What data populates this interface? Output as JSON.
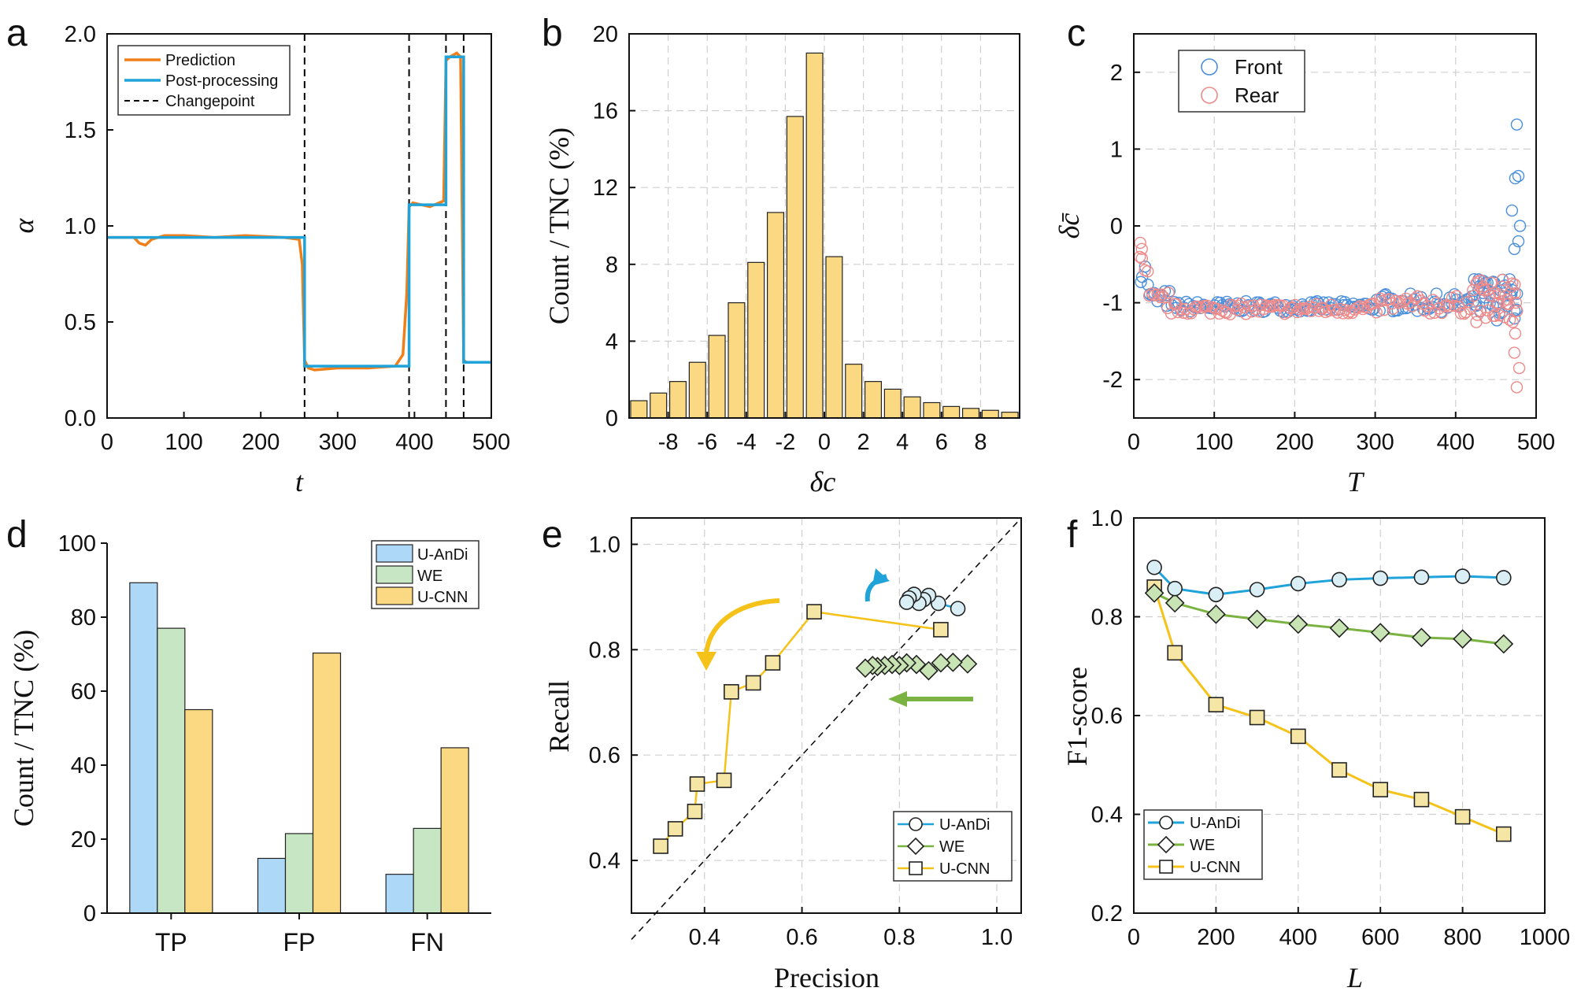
{
  "chart_data": [
    {
      "panel": "a",
      "type": "line",
      "xlabel": "t",
      "ylabel": "α",
      "xlim": [
        0,
        500
      ],
      "ylim": [
        0,
        2
      ],
      "xticks": [
        0,
        100,
        200,
        300,
        400,
        500
      ],
      "yticks": [
        0.0,
        0.5,
        1.0,
        1.5,
        2.0
      ],
      "ytick_labels": [
        "0.0",
        "0.5",
        "1.0",
        "1.5",
        "2.0"
      ],
      "legend": {
        "placement": "top-left",
        "entries": [
          "Prediction",
          "Post-processing",
          "Changepoint"
        ]
      },
      "colors": {
        "prediction": "#F07F1A",
        "post": "#1FA3D9",
        "changepoint": "#000000"
      },
      "changepoints": [
        257,
        393,
        441,
        464
      ],
      "series": [
        {
          "name": "Post-processing",
          "x": [
            0,
            257,
            257,
            393,
            393,
            441,
            441,
            464,
            464,
            500
          ],
          "y": [
            0.94,
            0.94,
            0.27,
            0.27,
            1.11,
            1.11,
            1.88,
            1.88,
            0.29,
            0.29
          ]
        },
        {
          "name": "Prediction",
          "x": [
            0,
            35,
            42,
            50,
            58,
            75,
            100,
            140,
            180,
            230,
            250,
            254,
            257,
            262,
            270,
            300,
            340,
            375,
            385,
            390,
            393,
            398,
            420,
            438,
            441,
            446,
            455,
            460,
            464,
            468,
            480,
            500
          ],
          "y": [
            0.94,
            0.94,
            0.91,
            0.9,
            0.93,
            0.95,
            0.95,
            0.94,
            0.95,
            0.94,
            0.93,
            0.8,
            0.3,
            0.26,
            0.25,
            0.26,
            0.26,
            0.27,
            0.33,
            0.65,
            1.1,
            1.12,
            1.1,
            1.13,
            1.86,
            1.88,
            1.9,
            1.88,
            0.3,
            0.29,
            0.29,
            0.29
          ]
        }
      ]
    },
    {
      "panel": "b",
      "type": "bar",
      "xlabel": "δc",
      "ylabel": "Count / TNC  (%)",
      "xlim": [
        -10,
        10
      ],
      "ylim": [
        0,
        20
      ],
      "xticks": [
        -8,
        -6,
        -4,
        -2,
        0,
        2,
        4,
        6,
        8
      ],
      "yticks": [
        0,
        4,
        8,
        12,
        16,
        20
      ],
      "color": "#FBD982",
      "x": [
        -9.5,
        -8.5,
        -7.5,
        -6.5,
        -5.5,
        -4.5,
        -3.5,
        -2.5,
        -1.5,
        -0.5,
        0.5,
        1.5,
        2.5,
        3.5,
        4.5,
        5.5,
        6.5,
        7.5,
        8.5,
        9.5
      ],
      "values": [
        0.9,
        1.3,
        1.9,
        2.9,
        4.3,
        6.0,
        8.1,
        10.7,
        15.7,
        19.0,
        8.4,
        2.8,
        1.9,
        1.5,
        1.1,
        0.8,
        0.6,
        0.5,
        0.4,
        0.3
      ]
    },
    {
      "panel": "c",
      "type": "scatter",
      "xlabel": "T",
      "ylabel": "δc̄",
      "xlim": [
        0,
        500
      ],
      "ylim": [
        -2.5,
        2.5
      ],
      "xticks": [
        0,
        100,
        200,
        300,
        400,
        500
      ],
      "yticks": [
        -2,
        -1,
        0,
        1,
        2
      ],
      "legend": {
        "placement": "top-left",
        "entries": [
          "Front",
          "Rear"
        ]
      },
      "colors": {
        "front": "#4A8FDB",
        "rear": "#EE8A8A"
      },
      "outliers_front": [
        [
          476,
          1.32
        ],
        [
          478,
          0.65
        ],
        [
          474,
          0.62
        ],
        [
          470,
          0.2
        ],
        [
          480,
          0.0
        ],
        [
          478,
          -0.2
        ],
        [
          473,
          -0.3
        ]
      ],
      "outliers_rear": [
        [
          476,
          -2.1
        ],
        [
          479,
          -1.85
        ],
        [
          473,
          -1.65
        ],
        [
          474,
          -1.4
        ],
        [
          471,
          -1.25
        ],
        [
          8,
          -0.22
        ],
        [
          10,
          -0.3
        ]
      ]
    },
    {
      "panel": "d",
      "type": "bar",
      "xlabel": "",
      "ylabel": "Count / TNC  (%)",
      "ylim": [
        0,
        100
      ],
      "yticks": [
        0,
        20,
        40,
        60,
        80,
        100
      ],
      "categories": [
        "TP",
        "FP",
        "FN"
      ],
      "legend": {
        "placement": "top-right"
      },
      "series": [
        {
          "name": "U-AnDi",
          "color": "#AED8F7",
          "values": [
            89.3,
            14.8,
            10.5
          ]
        },
        {
          "name": "WE",
          "color": "#C6E6C4",
          "values": [
            77.0,
            21.5,
            22.9
          ]
        },
        {
          "name": "U-CNN",
          "color": "#FBD982",
          "values": [
            55.0,
            70.3,
            44.7
          ]
        }
      ]
    },
    {
      "panel": "e",
      "type": "scatter",
      "xlabel": "Precision",
      "ylabel": "Recall",
      "xlim": [
        0.25,
        1.05
      ],
      "ylim": [
        0.3,
        1.05
      ],
      "xticks": [
        0.4,
        0.6,
        0.8,
        1.0
      ],
      "xtick_labels": [
        "0.4",
        "0.6",
        "0.8",
        "1.0"
      ],
      "yticks": [
        0.4,
        0.6,
        0.8,
        1.0
      ],
      "ytick_labels": [
        "0.4",
        "0.6",
        "0.8",
        "1.0"
      ],
      "legend": {
        "placement": "bottom-right"
      },
      "series": [
        {
          "name": "U-AnDi",
          "color": "#1FA3D9",
          "marker": "circle",
          "x": [
            0.92,
            0.88,
            0.86,
            0.85,
            0.84,
            0.83,
            0.82,
            0.815
          ],
          "y": [
            0.878,
            0.888,
            0.903,
            0.895,
            0.888,
            0.905,
            0.898,
            0.89
          ]
        },
        {
          "name": "WE",
          "color": "#7BB342",
          "marker": "diamond",
          "x": [
            0.94,
            0.91,
            0.885,
            0.86,
            0.835,
            0.815,
            0.8,
            0.785,
            0.77,
            0.755,
            0.745,
            0.73
          ],
          "y": [
            0.773,
            0.776,
            0.775,
            0.76,
            0.772,
            0.775,
            0.77,
            0.772,
            0.77,
            0.768,
            0.77,
            0.765
          ]
        },
        {
          "name": "U-CNN",
          "color": "#F5C219",
          "marker": "square",
          "x": [
            0.885,
            0.625,
            0.54,
            0.5,
            0.455,
            0.44,
            0.385,
            0.38,
            0.34,
            0.31
          ],
          "y": [
            0.838,
            0.872,
            0.775,
            0.737,
            0.72,
            0.552,
            0.545,
            0.493,
            0.46,
            0.427
          ]
        }
      ],
      "arrows": [
        "blue arrow up",
        "yellow arrow curving down-left",
        "green arrow pointing left"
      ]
    },
    {
      "panel": "f",
      "type": "line",
      "xlabel": "L",
      "ylabel": "F1-score",
      "xlim": [
        0,
        1000
      ],
      "ylim": [
        0.2,
        1.0
      ],
      "xticks": [
        0,
        200,
        400,
        600,
        800,
        1000
      ],
      "yticks": [
        0.2,
        0.4,
        0.6,
        0.8,
        1.0
      ],
      "ytick_labels": [
        "0.2",
        "0.4",
        "0.6",
        "0.8",
        "1.0"
      ],
      "x": [
        50,
        100,
        200,
        300,
        400,
        500,
        600,
        700,
        800,
        900
      ],
      "legend": {
        "placement": "bottom-left"
      },
      "series": [
        {
          "name": "U-AnDi",
          "color": "#1FA3D9",
          "marker": "circle",
          "values": [
            0.9,
            0.857,
            0.845,
            0.855,
            0.867,
            0.875,
            0.878,
            0.88,
            0.882,
            0.879
          ]
        },
        {
          "name": "WE",
          "color": "#7BB342",
          "marker": "diamond",
          "values": [
            0.848,
            0.828,
            0.805,
            0.795,
            0.785,
            0.777,
            0.768,
            0.758,
            0.755,
            0.745
          ]
        },
        {
          "name": "U-CNN",
          "color": "#F5C219",
          "marker": "square",
          "values": [
            0.86,
            0.727,
            0.622,
            0.596,
            0.558,
            0.49,
            0.45,
            0.43,
            0.395,
            0.36
          ]
        }
      ]
    }
  ]
}
